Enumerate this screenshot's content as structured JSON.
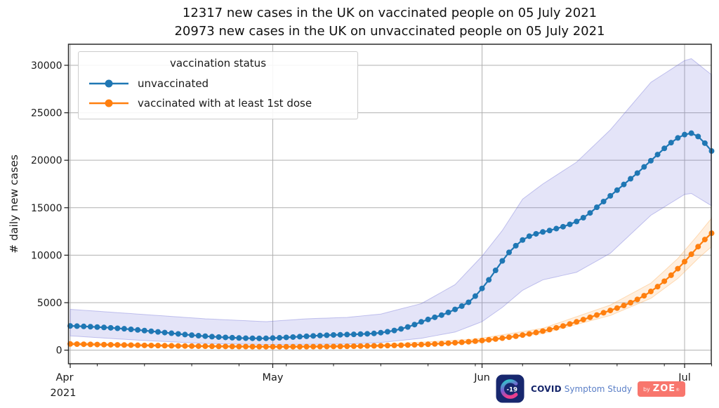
{
  "title": {
    "line1": "12317 new cases in the UK on vaccinated people on 05 July 2021",
    "line2": "20973 new cases in the UK on unvaccinated people on 05 July 2021"
  },
  "legend": {
    "title": "vaccination status",
    "entries": [
      {
        "label": "unvaccinated",
        "color": "#1f77b4"
      },
      {
        "label": "vaccinated with at least 1st dose",
        "color": "#ff7f0e"
      }
    ]
  },
  "axes": {
    "ylabel": "# daily new cases",
    "y_ticks": [
      0,
      5000,
      10000,
      15000,
      20000,
      25000,
      30000
    ],
    "x_ticks": [
      {
        "label": "Apr",
        "sublabel": "2021",
        "day": 0
      },
      {
        "label": "May",
        "sublabel": "",
        "day": 30
      },
      {
        "label": "Jun",
        "sublabel": "",
        "day": 61
      },
      {
        "label": "Jul",
        "sublabel": "",
        "day": 91
      }
    ],
    "minor_tick_days": [
      4,
      11,
      18,
      25,
      32,
      39,
      46,
      53,
      60,
      67,
      74,
      81,
      88,
      95
    ],
    "ylim": [
      -1400,
      32200
    ],
    "grid": true
  },
  "chart_data": {
    "type": "line",
    "title": "daily new COVID cases in the UK by vaccination status, 01 Apr 2021 - 05 Jul 2021",
    "x_unit": "days since 01 Apr 2021",
    "x_range_days": [
      0,
      95
    ],
    "xlabel_months": [
      "Apr 2021",
      "May",
      "Jun",
      "Jul"
    ],
    "ylabel": "# daily new cases",
    "ylim": [
      0,
      30000
    ],
    "series": [
      {
        "name": "unvaccinated",
        "color": "#1f77b4",
        "band_color": "#6b6bd6",
        "values": [
          2550,
          2530,
          2500,
          2470,
          2430,
          2390,
          2350,
          2300,
          2250,
          2190,
          2130,
          2060,
          1990,
          1920,
          1850,
          1780,
          1710,
          1640,
          1580,
          1520,
          1470,
          1420,
          1380,
          1340,
          1310,
          1280,
          1260,
          1250,
          1240,
          1250,
          1270,
          1300,
          1340,
          1380,
          1420,
          1460,
          1500,
          1540,
          1570,
          1600,
          1620,
          1640,
          1660,
          1690,
          1720,
          1760,
          1840,
          1940,
          2070,
          2240,
          2440,
          2690,
          2980,
          3230,
          3460,
          3690,
          3970,
          4290,
          4640,
          5040,
          5690,
          6500,
          7400,
          8400,
          9400,
          10300,
          11000,
          11600,
          12000,
          12250,
          12450,
          12600,
          12800,
          13000,
          13250,
          13550,
          13950,
          14450,
          15050,
          15650,
          16250,
          16850,
          17450,
          18050,
          18650,
          19300,
          19950,
          20600,
          21250,
          21850,
          22350,
          22700,
          22850,
          22500,
          21800,
          20973
        ],
        "band_anchors": [
          [
            0,
            1500,
            4300
          ],
          [
            10,
            1050,
            3800
          ],
          [
            20,
            700,
            3300
          ],
          [
            29,
            600,
            3000
          ],
          [
            35,
            620,
            3300
          ],
          [
            41,
            650,
            3450
          ],
          [
            46,
            800,
            3800
          ],
          [
            52,
            1250,
            4900
          ],
          [
            57,
            1900,
            6900
          ],
          [
            61,
            3000,
            9900
          ],
          [
            64,
            4500,
            12600
          ],
          [
            67,
            6300,
            15900
          ],
          [
            70,
            7400,
            17500
          ],
          [
            75,
            8200,
            19800
          ],
          [
            80,
            10200,
            23200
          ],
          [
            86,
            14200,
            28200
          ],
          [
            91,
            16400,
            30500
          ],
          [
            92,
            16500,
            30700
          ],
          [
            95,
            15200,
            29000
          ]
        ]
      },
      {
        "name": "vaccinated with at least 1st dose",
        "color": "#ff7f0e",
        "band_color": "#ffa94d",
        "values": [
          650,
          636,
          622,
          608,
          594,
          580,
          566,
          553,
          540,
          527,
          514,
          502,
          490,
          478,
          467,
          456,
          446,
          436,
          427,
          418,
          410,
          402,
          395,
          389,
          383,
          378,
          373,
          369,
          366,
          363,
          361,
          360,
          360,
          361,
          363,
          366,
          370,
          375,
          381,
          388,
          396,
          405,
          415,
          426,
          438,
          451,
          465,
          480,
          497,
          516,
          537,
          561,
          588,
          618,
          652,
          690,
          732,
          778,
          829,
          885,
          947,
          1015,
          1090,
          1172,
          1262,
          1360,
          1467,
          1584,
          1712,
          1852,
          2005,
          2170,
          2350,
          2545,
          2755,
          2980,
          3220,
          3460,
          3700,
          3940,
          4180,
          4430,
          4700,
          5000,
          5340,
          5730,
          6180,
          6690,
          7260,
          7890,
          8580,
          9320,
          10100,
          10900,
          11650,
          12317
        ],
        "band_anchors": [
          [
            0,
            520,
            800
          ],
          [
            15,
            350,
            580
          ],
          [
            29,
            275,
            460
          ],
          [
            45,
            350,
            560
          ],
          [
            60,
            760,
            1160
          ],
          [
            70,
            1760,
            2300
          ],
          [
            80,
            3650,
            4750
          ],
          [
            86,
            5450,
            7050
          ],
          [
            90,
            7550,
            9650
          ],
          [
            93,
            9650,
            12150
          ],
          [
            95,
            10900,
            13900
          ]
        ]
      }
    ],
    "annotations": {
      "final_values": {
        "unvaccinated": 20973,
        "vaccinated": 12317,
        "date": "05 July 2021"
      }
    },
    "legend_position": "upper left",
    "grid": true
  },
  "logo": {
    "c19": "-19",
    "covid": "COVID",
    "symptom_study": "Symptom Study",
    "by": "by",
    "zoe": "ZOE",
    "reg": "®",
    "badge_color": "#f8766d",
    "icon_color": "#17276e"
  }
}
